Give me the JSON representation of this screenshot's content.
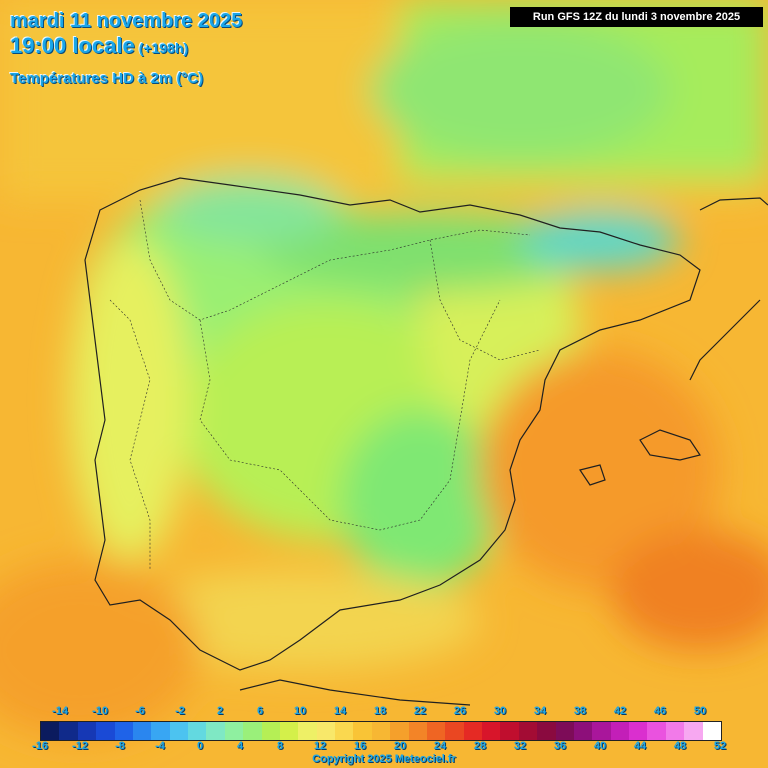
{
  "title": {
    "date": "mardi 11 novembre 2025",
    "hour": "19:00 locale",
    "lead": "(+198h)",
    "variable": "Températures HD à 2m (°C)"
  },
  "run_label": "Run GFS 12Z du lundi 3 novembre 2025",
  "copyright": "Copyright 2025 Meteociel.fr",
  "legend": {
    "top_ticks": [
      "-14",
      "-10",
      "-6",
      "-2",
      "2",
      "6",
      "10",
      "14",
      "18",
      "22",
      "26",
      "30",
      "34",
      "38",
      "42",
      "46",
      "50"
    ],
    "bottom_ticks": [
      "-16",
      "-12",
      "-8",
      "-4",
      "0",
      "4",
      "8",
      "12",
      "16",
      "20",
      "24",
      "28",
      "32",
      "36",
      "40",
      "44",
      "48",
      "52"
    ],
    "colors": [
      "#0b1b5e",
      "#102a8a",
      "#1638b5",
      "#1a4ad6",
      "#1f63e8",
      "#2a86ef",
      "#38a6f3",
      "#4cc3f0",
      "#63d9e0",
      "#7fe8c4",
      "#8ff0a0",
      "#9af07a",
      "#b5ef55",
      "#d4f04a",
      "#eef066",
      "#f8e86a",
      "#fad84f",
      "#f9c436",
      "#f7b733",
      "#f5a02b",
      "#f38427",
      "#ef6523",
      "#ea4722",
      "#e52a24",
      "#d8152a",
      "#c00e2e",
      "#a30c34",
      "#8a0a3f",
      "#7d0c58",
      "#8d0f7a",
      "#a9169b",
      "#c31fb8",
      "#da2fcf",
      "#ea52df",
      "#f27ae9",
      "#f7a8f1",
      "#ffffff"
    ]
  },
  "map": {
    "region": "Iberian Peninsula",
    "value_grid_description": "temperature values printed on grid"
  }
}
